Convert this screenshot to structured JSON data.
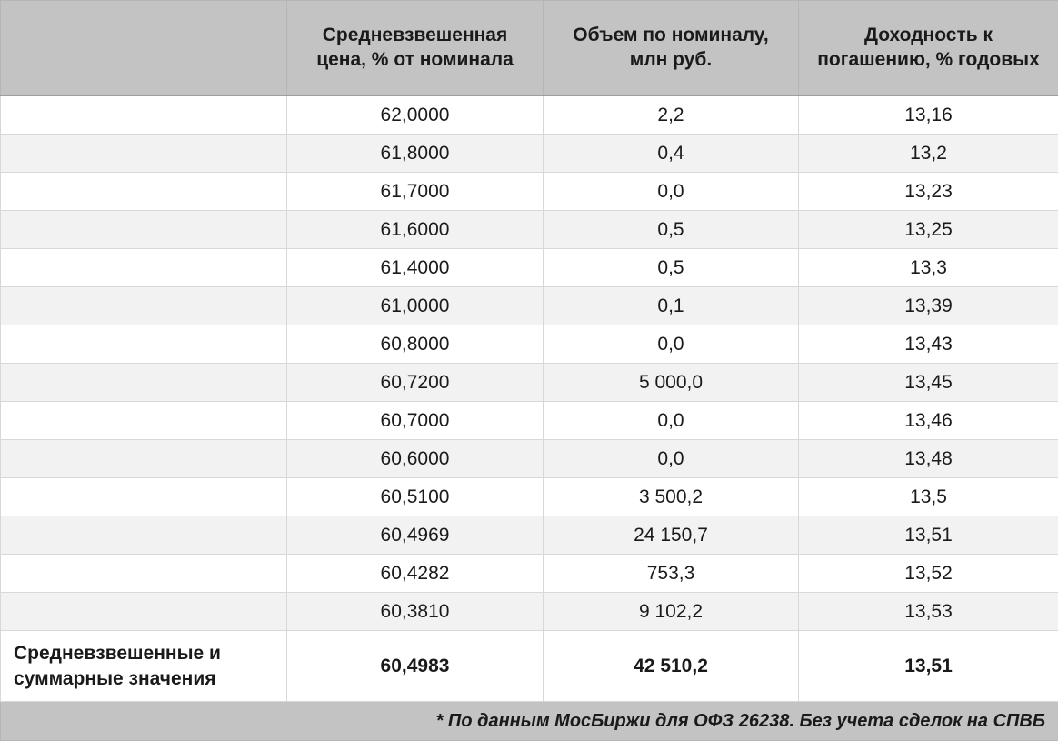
{
  "chart_data": {
    "type": "table",
    "columns": [
      "",
      "Средневзвешенная цена, % от номинала",
      "Объем по номиналу, млн руб.",
      "Доходность к погашению, % годовых"
    ],
    "rows": [
      [
        "62,0000",
        "2,2",
        "13,16"
      ],
      [
        "61,8000",
        "0,4",
        "13,2"
      ],
      [
        "61,7000",
        "0,0",
        "13,23"
      ],
      [
        "61,6000",
        "0,5",
        "13,25"
      ],
      [
        "61,4000",
        "0,5",
        "13,3"
      ],
      [
        "61,0000",
        "0,1",
        "13,39"
      ],
      [
        "60,8000",
        "0,0",
        "13,43"
      ],
      [
        "60,7200",
        "5 000,0",
        "13,45"
      ],
      [
        "60,7000",
        "0,0",
        "13,46"
      ],
      [
        "60,6000",
        "0,0",
        "13,48"
      ],
      [
        "60,5100",
        "3 500,2",
        "13,5"
      ],
      [
        "60,4969",
        "24 150,7",
        "13,51"
      ],
      [
        "60,4282",
        "753,3",
        "13,52"
      ],
      [
        "60,3810",
        "9 102,2",
        "13,53"
      ]
    ],
    "summary": {
      "label": "Средневзвешенные и суммарные значения",
      "price": "60,4983",
      "volume": "42 510,2",
      "yield": "13,51"
    },
    "footnote": "* По данным МосБиржи для ОФЗ 26238. Без учета сделок на СПВБ"
  },
  "colors": {
    "header_bg": "#c3c3c3",
    "alt_row_bg": "#f2f2f2",
    "row_bg": "#ffffff",
    "border": "#d8d8d8",
    "text": "#1a1a1a"
  }
}
